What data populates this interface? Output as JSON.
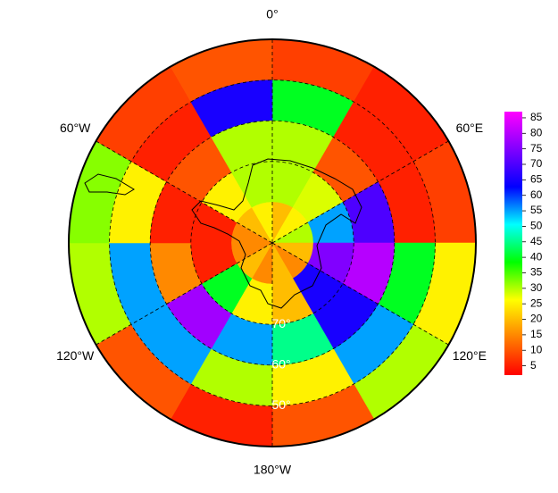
{
  "chart_data": {
    "type": "polar-heatmap",
    "lat_bins": [
      40,
      50,
      60,
      70,
      80,
      90
    ],
    "lon_bins": [
      0,
      30,
      60,
      90,
      120,
      150,
      180,
      210,
      240,
      270,
      300,
      330,
      360
    ],
    "values": [
      [
        8,
        5,
        8,
        25,
        30,
        10,
        5,
        10,
        30,
        32,
        8,
        10
      ],
      [
        40,
        5,
        5,
        40,
        55,
        25,
        30,
        55,
        55,
        25,
        5,
        65
      ],
      [
        30,
        10,
        70,
        80,
        65,
        45,
        55,
        78,
        15,
        5,
        10,
        30
      ],
      [
        30,
        28,
        55,
        75,
        65,
        20,
        25,
        40,
        5,
        5,
        25,
        30
      ],
      [
        20,
        25,
        30,
        20,
        15,
        20,
        15,
        20,
        15,
        15,
        20,
        25
      ]
    ],
    "lonticks": [
      {
        "value": 0,
        "label": "0°"
      },
      {
        "value": 60,
        "label": "60°E"
      },
      {
        "value": 120,
        "label": "120°E"
      },
      {
        "value": 180,
        "label": "180°W"
      },
      {
        "value": 240,
        "label": "120°W"
      },
      {
        "value": 300,
        "label": "60°W"
      }
    ],
    "latticks": [
      {
        "value": 50,
        "label": "50°"
      },
      {
        "value": 60,
        "label": "60°"
      },
      {
        "value": 70,
        "label": "70°"
      }
    ],
    "clim": [
      2,
      87
    ],
    "cticks": [
      5,
      10,
      15,
      20,
      25,
      30,
      35,
      40,
      45,
      50,
      55,
      60,
      65,
      70,
      75,
      80,
      85
    ],
    "colormap": [
      "#ff0000",
      "#ff8000",
      "#ffff00",
      "#00ff00",
      "#00ffff",
      "#0000ff",
      "#8000ff",
      "#ff00ff"
    ]
  }
}
